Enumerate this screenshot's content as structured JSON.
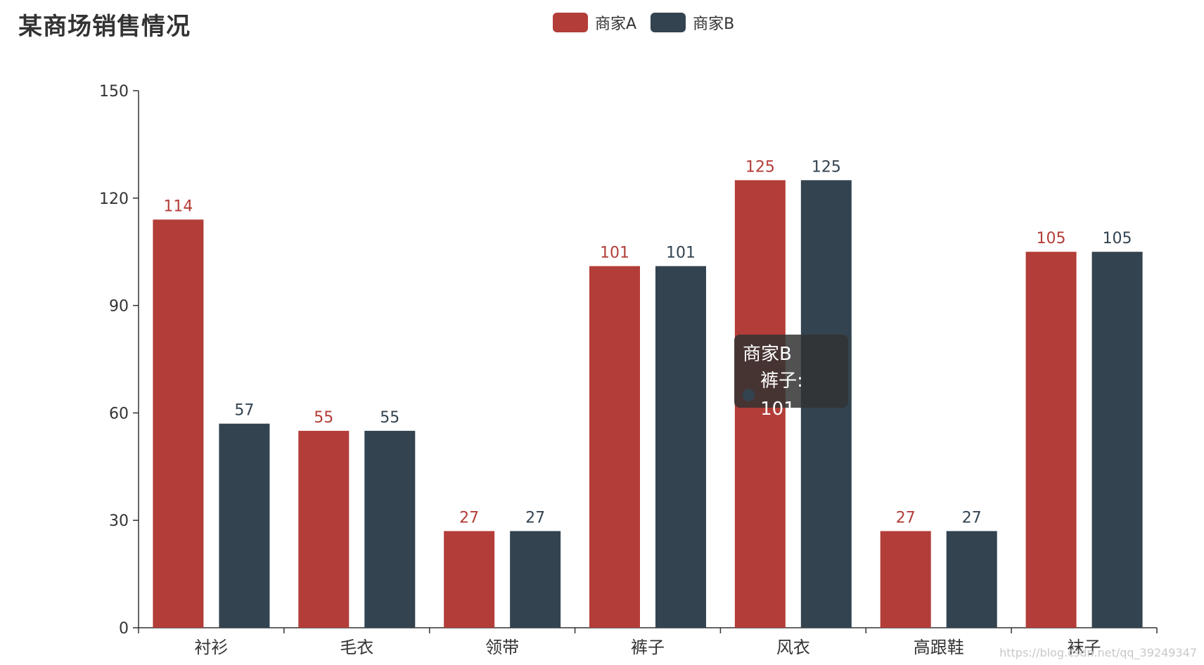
{
  "colors": {
    "a": "#b33d38",
    "b": "#334350"
  },
  "tooltip": {
    "series": "商家B",
    "category": "裤子",
    "value": "101",
    "text": "裤子: 101"
  },
  "watermark": "https://blog.csdn.net/qq_39249347",
  "chart_data": {
    "type": "bar",
    "title": "某商场销售情况",
    "categories": [
      "衬衫",
      "毛衣",
      "领带",
      "裤子",
      "风衣",
      "高跟鞋",
      "袜子"
    ],
    "series": [
      {
        "name": "商家A",
        "values": [
          114,
          55,
          27,
          101,
          125,
          27,
          105
        ]
      },
      {
        "name": "商家B",
        "values": [
          57,
          55,
          27,
          101,
          125,
          27,
          105
        ]
      }
    ],
    "ylim": [
      0,
      150
    ],
    "yticks": [
      0,
      30,
      60,
      90,
      120,
      150
    ],
    "legend_position": "top-center",
    "grid": false
  }
}
